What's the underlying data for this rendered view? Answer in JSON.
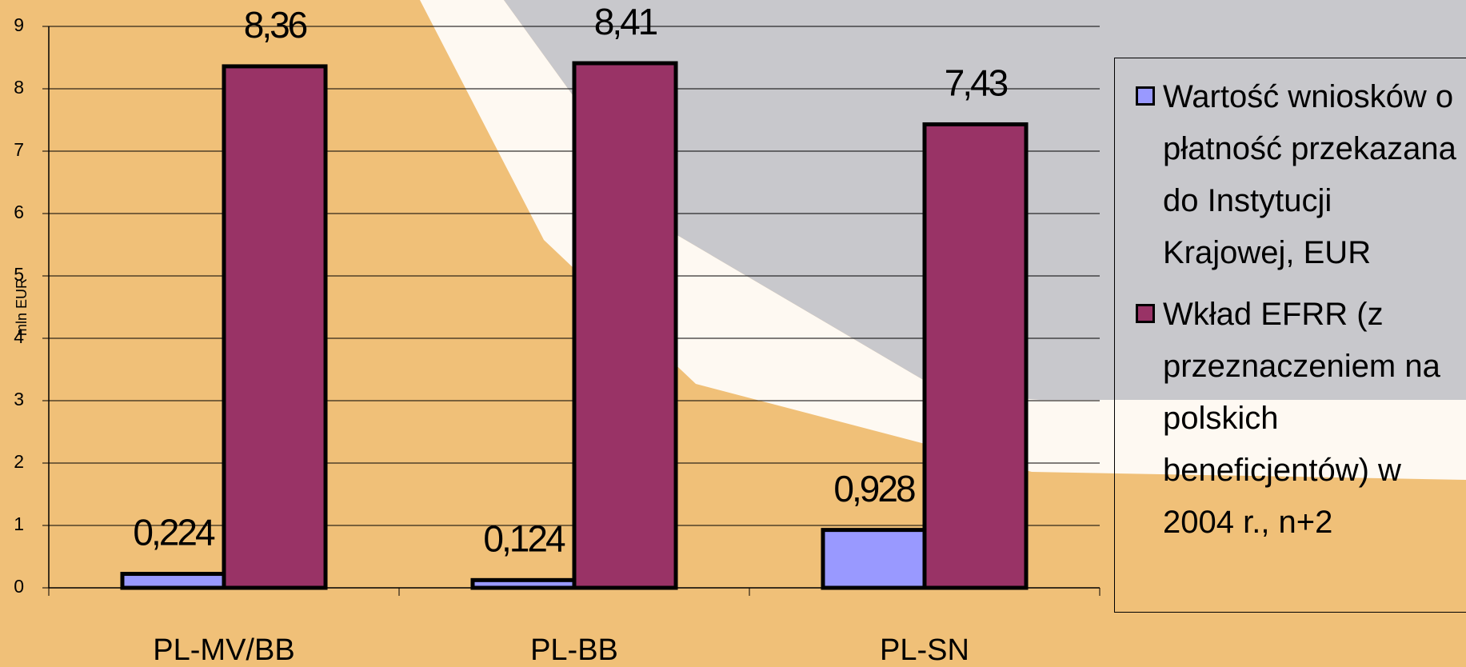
{
  "chart_data": {
    "type": "bar",
    "categories": [
      "PL-MV/BB",
      "PL-BB",
      "PL-SN"
    ],
    "y_label": "mln EUR",
    "series": [
      {
        "name": "Wartość wniosków o płatność przekazana do Instytucji Krajowej, EUR",
        "color": "#9999ff",
        "values": [
          0.224,
          0.124,
          0.928
        ],
        "value_labels": [
          "0,224",
          "0,124",
          "0,928"
        ]
      },
      {
        "name": "Wkład EFRR (z przeznaczeniem na polskich beneficjentów) w 2004 r., n+2",
        "color": "#993366",
        "values": [
          8.36,
          8.41,
          7.43
        ],
        "value_labels": [
          "8,36",
          "8,41",
          "7,43"
        ]
      }
    ],
    "ylim": [
      0,
      9
    ],
    "yticks": [
      0,
      1,
      2,
      3,
      4,
      5,
      6,
      7,
      8,
      9
    ],
    "grid": true,
    "legend": "right"
  }
}
